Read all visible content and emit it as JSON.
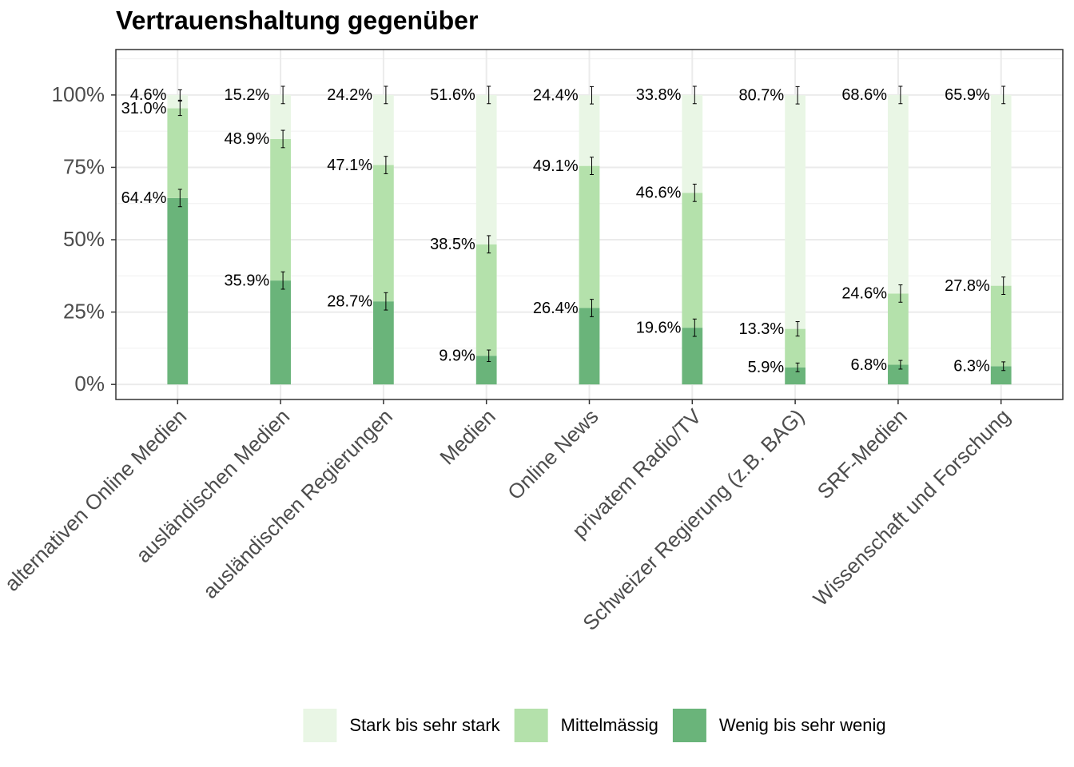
{
  "chart_data": {
    "type": "bar",
    "title": "Vertrauenshaltung gegenüber",
    "categories": [
      "alternativen Online Medien",
      "ausländischen Medien",
      "ausländischen Regierungen",
      "Medien",
      "Online News",
      "privatem Radio/TV",
      "Schweizer Regierung (z.B. BAG)",
      "SRF-Medien",
      "Wissenschaft und Forschung"
    ],
    "series": [
      {
        "name": "Stark bis sehr stark",
        "color": "#e9f6e5",
        "values": [
          4.6,
          15.2,
          24.2,
          51.6,
          24.4,
          33.8,
          80.7,
          68.6,
          65.9
        ],
        "value_labels": [
          "4.6%",
          "15.2%",
          "24.2%",
          "51.6%",
          "24.4%",
          "33.8%",
          "80.7%",
          "68.6%",
          "65.9%"
        ],
        "errors": [
          1.8,
          3,
          3,
          3,
          3,
          3,
          3,
          3,
          3
        ]
      },
      {
        "name": "Mittelmässig",
        "color": "#b4e1ab",
        "values": [
          31.0,
          48.9,
          47.1,
          38.5,
          49.1,
          46.6,
          13.3,
          24.6,
          27.8
        ],
        "value_labels": [
          "31.0%",
          "48.9%",
          "47.1%",
          "38.5%",
          "49.1%",
          "46.6%",
          "13.3%",
          "24.6%",
          "27.8%"
        ],
        "errors": [
          2.5,
          3,
          3,
          3,
          3,
          3,
          2.5,
          3,
          3
        ]
      },
      {
        "name": "Wenig bis sehr wenig",
        "color": "#6ab47a",
        "values": [
          64.4,
          35.9,
          28.7,
          9.9,
          26.4,
          19.6,
          5.9,
          6.8,
          6.3
        ],
        "value_labels": [
          "64.4%",
          "35.9%",
          "28.7%",
          "9.9%",
          "26.4%",
          "19.6%",
          "5.9%",
          "6.8%",
          "6.3%"
        ],
        "errors": [
          3,
          3,
          3,
          2,
          3,
          3,
          1.5,
          1.5,
          1.5
        ]
      }
    ],
    "ylim": [
      -5.2,
      115.7
    ],
    "yticks": [
      {
        "value": 0,
        "label": "0%"
      },
      {
        "value": 25,
        "label": "25%"
      },
      {
        "value": 50,
        "label": "50%"
      },
      {
        "value": 75,
        "label": "75%"
      },
      {
        "value": 100,
        "label": "100%"
      }
    ],
    "grid": true,
    "legend": "bottom"
  }
}
